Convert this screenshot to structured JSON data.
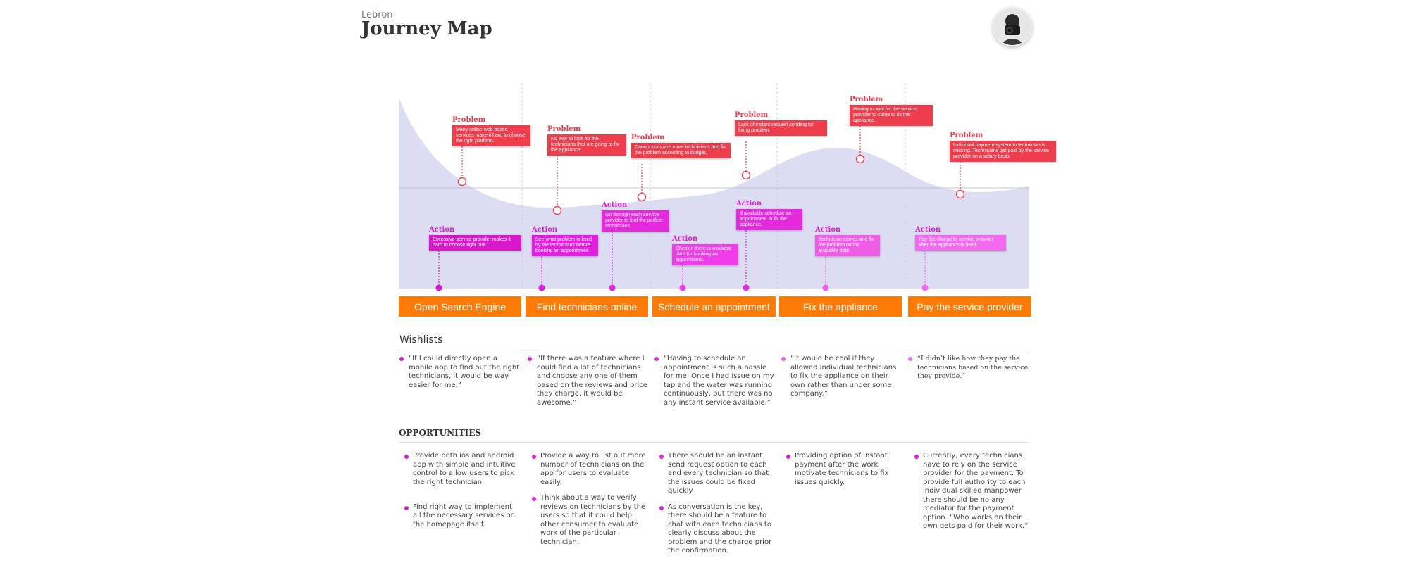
{
  "header": {
    "subtitle": "Lebron",
    "title": "Journey Map"
  },
  "colors": {
    "problem": "#ee3e4e",
    "action_shades": [
      "#d61ac9",
      "#e21ee0",
      "#e52ade",
      "#ef3ee9",
      "#f05ce6",
      "#f26bef"
    ],
    "stage": "#ff7b07",
    "curve": "#dcdcf2"
  },
  "stages": [
    "Open Search Engine",
    "Find technicians online",
    "Schedule an appointment",
    "Fix the appliance",
    "Pay the service provider"
  ],
  "problems": [
    {
      "label": "Problem",
      "text": "Many online web based services make it hard to choose the right platform."
    },
    {
      "label": "Problem",
      "text": "No way to look for the technicians that are going to fix the appliance."
    },
    {
      "label": "Problem",
      "text": "Cannot compare more technicians and fix the problem according to budget."
    },
    {
      "label": "Problem",
      "text": "Lack of instant request sending for fixing problem."
    },
    {
      "label": "Problem",
      "text": "Having to wait for the service provider to come to fix the appliance."
    },
    {
      "label": "Problem",
      "text": "Individual payment system to technician is missing. Technicians get paid by the service provider on a salary basis."
    }
  ],
  "actions": [
    {
      "label": "Action",
      "text": "Excessive service provider makes it hard to choose right one."
    },
    {
      "label": "Action",
      "text": "See what problem is fixed by the technicians before booking an appointment."
    },
    {
      "label": "Action",
      "text": "Go through each service provider to find the perfect technicians."
    },
    {
      "label": "Action",
      "text": "Check if there is available date for booking an appointment."
    },
    {
      "label": "Action",
      "text": "If available schedule an appointment to fix the appliance."
    },
    {
      "label": "Action",
      "text": "Technician comes and fix the problem on the available date."
    },
    {
      "label": "Action",
      "text": "Pay the charge to service provider after the appliance is fixed."
    }
  ],
  "wishlists": {
    "title": "Wishlists",
    "items": [
      "“If I could directly open a mobile app to find out the right technicians, it would be way easier for me.”",
      "“If there was a feature where I could find a lot of technicians and choose any one of them based on the reviews and price they charge, it would be awesome.”",
      "“Having to schedule an appointment is such a hassle for me. Once I had issue on my tap and the water was running continuously, but there was no any instant service available.”",
      "“It would be cool if they allowed individual technicians to fix the appliance on their own rather than under some company.”",
      "“I didn’t like how they pay the technicians based on the service they provide.”"
    ]
  },
  "opportunities": {
    "title": "OPPORTUNITIES",
    "columns": [
      [
        "Provide both ios and android app with simple and intuitive control to allow users to pick the right technician.",
        "Find right way to implement all the necessary services on the homepage itself."
      ],
      [
        "Provide a way to list out more number of technicians on the app for users to evaluate easily.",
        "Think about a way to verify reviews on technicians by the users so that it could help other consumer to evaluate work of the particular technician."
      ],
      [
        "There should be an instant send request option to each and every technician so that the issues could be fixed quickly.",
        "As conversation is the key, there should be a feature to chat with each technicians to clearly discuss about the problem and the charge prior the confirmation."
      ],
      [
        "Providing option of instant payment after the work motivate technicians to fix issues quickly."
      ],
      [
        "Currently, every technicians have to rely on the service provider for the payment. To provide full authority to each individual skilled manpower there should be no any mediator for the payment option. “Who works on their own gets paid for their work.”"
      ]
    ]
  }
}
